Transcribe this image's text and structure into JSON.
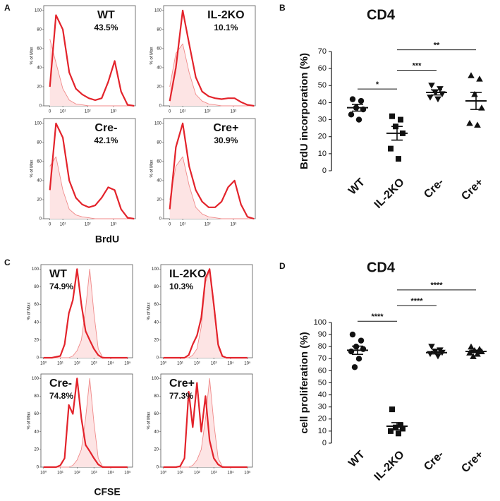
{
  "figure": {
    "panels": [
      "A",
      "B",
      "C",
      "D"
    ],
    "xlabels": [
      "BrdU",
      "CFSE"
    ]
  },
  "chart_data": [
    {
      "type": "line",
      "label": "WT",
      "annotation": "43.5%",
      "ylabel": "% of Max",
      "x": [
        0,
        4,
        10,
        19,
        35,
        62,
        111,
        197,
        350,
        622,
        1107,
        1967,
        3500,
        6200
      ],
      "xscale": "asinh",
      "xlim": [
        -4,
        7000
      ],
      "xticks": [
        0,
        {
          "value": 10,
          "label": "10¹"
        },
        {
          "value": 100,
          "label": "10²"
        },
        {
          "value": 1000,
          "label": "10³"
        }
      ],
      "ylim": [
        0,
        105
      ],
      "yticks": [
        0,
        20,
        40,
        60,
        80,
        100
      ],
      "series": [
        {
          "color": "#f08a8a",
          "fill": "#fde4e4",
          "values": [
            70,
            45,
            18,
            6,
            2,
            1,
            0,
            0,
            0,
            0,
            0,
            0,
            0,
            0
          ]
        },
        {
          "color": "#e3232b",
          "values": [
            20,
            95,
            80,
            35,
            18,
            12,
            8,
            6,
            8,
            25,
            47,
            15,
            1,
            0
          ]
        }
      ]
    },
    {
      "type": "line",
      "label": "IL-2KO",
      "annotation": "10.1%",
      "ylabel": "% of Max",
      "x": [
        0,
        4,
        10,
        19,
        35,
        62,
        111,
        197,
        350,
        622,
        1107,
        1967,
        3500,
        6200
      ],
      "xscale": "asinh",
      "xlim": [
        -4,
        7000
      ],
      "xticks": [
        0,
        {
          "value": 10,
          "label": "10¹"
        },
        {
          "value": 100,
          "label": "10²"
        },
        {
          "value": 1000,
          "label": "10³"
        }
      ],
      "ylim": [
        0,
        105
      ],
      "yticks": [
        0,
        20,
        40,
        60,
        80,
        100
      ],
      "series": [
        {
          "color": "#f08a8a",
          "fill": "#fde4e4",
          "values": [
            20,
            55,
            65,
            35,
            12,
            5,
            2,
            1,
            0,
            0,
            0,
            0,
            0,
            0
          ]
        },
        {
          "color": "#e3232b",
          "values": [
            5,
            40,
            100,
            65,
            30,
            15,
            10,
            8,
            7,
            8,
            8,
            4,
            1,
            0
          ]
        }
      ]
    },
    {
      "type": "line",
      "label": "Cre-",
      "annotation": "42.1%",
      "ylabel": "% of Max",
      "x": [
        0,
        4,
        10,
        19,
        35,
        62,
        111,
        197,
        350,
        622,
        1107,
        1967,
        3500,
        6200
      ],
      "xscale": "asinh",
      "xlim": [
        -4,
        7000
      ],
      "xticks": [
        0,
        {
          "value": 10,
          "label": "10¹"
        },
        {
          "value": 100,
          "label": "10²"
        },
        {
          "value": 1000,
          "label": "10³"
        }
      ],
      "ylim": [
        0,
        105
      ],
      "yticks": [
        0,
        20,
        40,
        60,
        80,
        100
      ],
      "series": [
        {
          "color": "#f08a8a",
          "fill": "#fde4e4",
          "values": [
            55,
            65,
            30,
            10,
            4,
            2,
            1,
            0,
            0,
            0,
            0,
            0,
            0,
            0
          ]
        },
        {
          "color": "#e3232b",
          "values": [
            30,
            100,
            85,
            40,
            22,
            15,
            12,
            14,
            22,
            33,
            30,
            10,
            1,
            0
          ]
        }
      ]
    },
    {
      "type": "line",
      "label": "Cre+",
      "annotation": "30.9%",
      "ylabel": "% of Max",
      "x": [
        0,
        4,
        10,
        19,
        35,
        62,
        111,
        197,
        350,
        622,
        1107,
        1967,
        3500,
        6200
      ],
      "xscale": "asinh",
      "xlim": [
        -4,
        7000
      ],
      "xticks": [
        0,
        {
          "value": 10,
          "label": "10¹"
        },
        {
          "value": 100,
          "label": "10²"
        },
        {
          "value": 1000,
          "label": "10³"
        }
      ],
      "ylim": [
        0,
        105
      ],
      "yticks": [
        0,
        20,
        40,
        60,
        80,
        100
      ],
      "series": [
        {
          "color": "#f08a8a",
          "fill": "#fde4e4",
          "values": [
            20,
            55,
            65,
            35,
            12,
            5,
            2,
            1,
            0,
            0,
            0,
            0,
            0,
            0
          ]
        },
        {
          "color": "#e3232b",
          "values": [
            10,
            75,
            100,
            55,
            30,
            18,
            12,
            12,
            18,
            33,
            40,
            15,
            2,
            0
          ]
        }
      ]
    },
    {
      "type": "dot",
      "title": "CD4",
      "ylabel": "BrdU incorporation (%)",
      "categories": [
        "WT",
        "IL-2KO",
        "Cre-",
        "Cre+"
      ],
      "markers": [
        "circle",
        "square",
        "triangle-down",
        "triangle-up"
      ],
      "values": [
        [
          42,
          41,
          37,
          36,
          33,
          30
        ],
        [
          32,
          30,
          26,
          22,
          13,
          7
        ],
        [
          50,
          48,
          46,
          45,
          43,
          42
        ],
        [
          56,
          54,
          45,
          37,
          28,
          27
        ]
      ],
      "means": [
        37,
        22,
        46,
        41
      ],
      "sems": [
        2,
        4,
        1.5,
        5
      ],
      "ylim": [
        0,
        70
      ],
      "yticks": [
        0,
        10,
        20,
        30,
        40,
        50,
        60,
        70
      ],
      "comparisons": [
        {
          "from": 0,
          "to": 1,
          "y": 48,
          "label": "*"
        },
        {
          "from": 1,
          "to": 2,
          "y": 59,
          "label": "***"
        },
        {
          "from": 1,
          "to": 3,
          "y": 71,
          "label": "**"
        }
      ]
    },
    {
      "type": "line",
      "label": "WT",
      "annotation": "74.9%",
      "ylabel": "% of Max",
      "x": [
        1,
        1.8,
        3.2,
        5.6,
        10,
        18,
        32,
        56,
        100,
        180,
        320,
        560,
        1000,
        1800,
        3200,
        5600,
        10000,
        18000,
        32000,
        56000,
        100000
      ],
      "xscale": "log",
      "xlim": [
        0.7,
        200000
      ],
      "xticks": [
        {
          "value": 1,
          "label": "10⁰"
        },
        {
          "value": 10,
          "label": "10¹"
        },
        {
          "value": 100,
          "label": "10²"
        },
        {
          "value": 1000,
          "label": "10³"
        },
        {
          "value": 10000,
          "label": "10⁴"
        },
        {
          "value": 100000,
          "label": "10⁵"
        }
      ],
      "ylim": [
        0,
        105
      ],
      "yticks": [
        0,
        20,
        40,
        60,
        80,
        100
      ],
      "series": [
        {
          "color": "#f08a8a",
          "fill": "#fde4e4",
          "values": [
            0,
            0,
            0,
            0,
            0,
            0,
            0,
            2,
            8,
            20,
            55,
            100,
            50,
            10,
            1,
            0,
            0,
            0,
            0,
            0,
            0
          ]
        },
        {
          "color": "#e3232b",
          "values": [
            0,
            0,
            0,
            1,
            2,
            15,
            50,
            65,
            100,
            60,
            30,
            20,
            10,
            3,
            0,
            0,
            0,
            0,
            0,
            0,
            0
          ]
        }
      ]
    },
    {
      "type": "line",
      "label": "IL-2KO",
      "annotation": "10.3%",
      "ylabel": "% of Max",
      "x": [
        1,
        1.8,
        3.2,
        5.6,
        10,
        18,
        32,
        56,
        100,
        180,
        320,
        560,
        1000,
        1800,
        3200,
        5600,
        10000,
        18000,
        32000,
        56000,
        100000
      ],
      "xscale": "log",
      "xlim": [
        0.7,
        200000
      ],
      "xticks": [
        {
          "value": 1,
          "label": "10⁰"
        },
        {
          "value": 10,
          "label": "10¹"
        },
        {
          "value": 100,
          "label": "10²"
        },
        {
          "value": 1000,
          "label": "10³"
        },
        {
          "value": 10000,
          "label": "10⁴"
        },
        {
          "value": 100000,
          "label": "10⁵"
        }
      ],
      "ylim": [
        0,
        105
      ],
      "yticks": [
        0,
        20,
        40,
        60,
        80,
        100
      ],
      "series": [
        {
          "color": "#f08a8a",
          "fill": "#fde4e4",
          "values": [
            0,
            0,
            0,
            0,
            0,
            0,
            0,
            3,
            10,
            35,
            85,
            98,
            55,
            12,
            1,
            0,
            0,
            0,
            0,
            0,
            0
          ]
        },
        {
          "color": "#e3232b",
          "values": [
            0,
            0,
            0,
            0,
            0,
            0,
            3,
            15,
            25,
            45,
            90,
            100,
            60,
            15,
            2,
            0,
            0,
            0,
            0,
            0,
            0
          ]
        }
      ]
    },
    {
      "type": "line",
      "label": "Cre-",
      "annotation": "74.8%",
      "ylabel": "% of Max",
      "x": [
        1,
        1.8,
        3.2,
        5.6,
        10,
        18,
        32,
        56,
        100,
        180,
        320,
        560,
        1000,
        1800,
        3200,
        5600,
        10000,
        18000,
        32000,
        56000,
        100000
      ],
      "xscale": "log",
      "xlim": [
        0.7,
        200000
      ],
      "xticks": [
        {
          "value": 1,
          "label": "10⁰"
        },
        {
          "value": 10,
          "label": "10¹"
        },
        {
          "value": 100,
          "label": "10²"
        },
        {
          "value": 1000,
          "label": "10³"
        },
        {
          "value": 10000,
          "label": "10⁴"
        },
        {
          "value": 100000,
          "label": "10⁵"
        }
      ],
      "ylim": [
        0,
        105
      ],
      "yticks": [
        0,
        20,
        40,
        60,
        80,
        100
      ],
      "series": [
        {
          "color": "#f08a8a",
          "fill": "#fde4e4",
          "values": [
            0,
            0,
            0,
            0,
            0,
            0,
            0,
            2,
            8,
            20,
            55,
            100,
            50,
            10,
            1,
            0,
            0,
            0,
            0,
            0,
            0
          ]
        },
        {
          "color": "#e3232b",
          "values": [
            0,
            0,
            0,
            0,
            2,
            10,
            70,
            60,
            100,
            55,
            25,
            18,
            10,
            3,
            0,
            0,
            0,
            0,
            0,
            0,
            0
          ]
        }
      ]
    },
    {
      "type": "line",
      "label": "Cre+",
      "annotation": "77.3%",
      "ylabel": "% of Max",
      "x": [
        1,
        1.8,
        3.2,
        5.6,
        10,
        18,
        32,
        56,
        100,
        180,
        320,
        560,
        1000,
        1800,
        3200,
        5600,
        10000,
        18000,
        32000,
        56000,
        100000
      ],
      "xscale": "log",
      "xlim": [
        0.7,
        200000
      ],
      "xticks": [
        {
          "value": 1,
          "label": "10⁰"
        },
        {
          "value": 10,
          "label": "10¹"
        },
        {
          "value": 100,
          "label": "10²"
        },
        {
          "value": 1000,
          "label": "10³"
        },
        {
          "value": 10000,
          "label": "10⁴"
        },
        {
          "value": 100000,
          "label": "10⁵"
        }
      ],
      "ylim": [
        0,
        105
      ],
      "yticks": [
        0,
        20,
        40,
        60,
        80,
        100
      ],
      "series": [
        {
          "color": "#f08a8a",
          "fill": "#fde4e4",
          "values": [
            0,
            0,
            0,
            0,
            0,
            0,
            0,
            2,
            8,
            20,
            55,
            100,
            50,
            10,
            1,
            0,
            0,
            0,
            0,
            0,
            0
          ]
        },
        {
          "color": "#e3232b",
          "values": [
            0,
            0,
            0,
            0,
            1,
            10,
            85,
            45,
            95,
            40,
            80,
            30,
            10,
            3,
            0,
            0,
            0,
            0,
            0,
            0,
            0
          ]
        }
      ]
    },
    {
      "type": "dot",
      "title": "CD4",
      "ylabel": "cell proliferation (%)",
      "categories": [
        "WT",
        "IL-2KO",
        "Cre-",
        "Cre+"
      ],
      "markers": [
        "circle",
        "square",
        "triangle-down",
        "triangle-up"
      ],
      "values": [
        [
          90,
          85,
          80,
          78,
          76,
          70,
          63
        ],
        [
          28,
          15,
          13,
          12,
          10,
          8
        ],
        [
          80,
          77,
          76,
          75,
          74,
          72
        ],
        [
          80,
          78,
          77,
          76,
          75,
          74,
          72
        ]
      ],
      "means": [
        77,
        14,
        75,
        76
      ],
      "sems": [
        3.4,
        3,
        1.1,
        1
      ],
      "ylim": [
        0,
        100
      ],
      "yticks": [
        0,
        10,
        20,
        30,
        40,
        50,
        60,
        70,
        80,
        90,
        100
      ],
      "comparisons": [
        {
          "from": 0,
          "to": 1,
          "y": 101,
          "label": "****"
        },
        {
          "from": 1,
          "to": 2,
          "y": 114,
          "label": "****"
        },
        {
          "from": 1,
          "to": 3,
          "y": 127,
          "label": "****"
        }
      ]
    }
  ]
}
